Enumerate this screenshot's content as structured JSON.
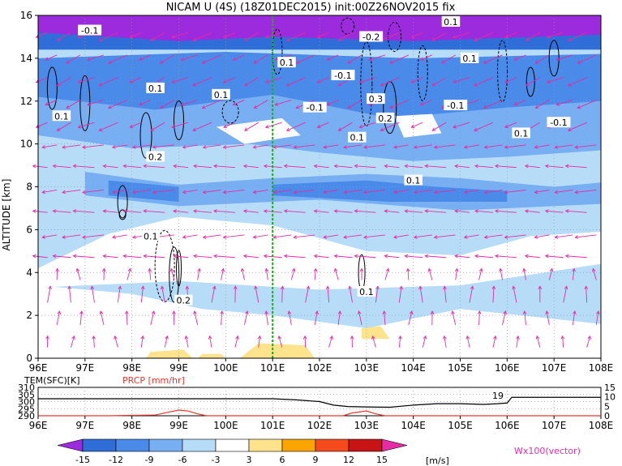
{
  "chart_data": [
    {
      "type": "heatmap",
      "title": "NICAM U (4S) (18Z01DEC2015) init:00Z26NOV2015 fix",
      "ylabel": "ALTITUDE [km]",
      "xlim": [
        96,
        108
      ],
      "ylim": [
        0,
        16
      ],
      "x_ticks": [
        "96E",
        "97E",
        "98E",
        "99E",
        "100E",
        "101E",
        "102E",
        "103E",
        "104E",
        "105E",
        "106E",
        "107E",
        "108E"
      ],
      "y_ticks": [
        "0",
        "2",
        "4",
        "6",
        "8",
        "10",
        "12",
        "14",
        "16"
      ],
      "grid": true,
      "marker_line_x": 101,
      "colorbar": {
        "levels": [
          "-15",
          "-12",
          "-9",
          "-6",
          "-3",
          "3",
          "6",
          "9",
          "12",
          "15"
        ],
        "colors": [
          "#9b2bdc",
          "#2f6ed9",
          "#4a8ae8",
          "#78aef2",
          "#b6dcf7",
          "#ffffff",
          "#fde38c",
          "#fca400",
          "#f44a1c",
          "#c81414",
          "#e62ba4"
        ],
        "unit": "[m/s]"
      },
      "vector_label": "Wx100(vector)",
      "contour_labels": [
        "-0.1",
        "-0.2",
        "0.1",
        "0.1",
        "0.1",
        "0.1",
        "0.1",
        "0.2",
        "0.3",
        "0.2",
        "0.1",
        "0.1",
        "0.1",
        "-0.1",
        "-0.1",
        "-0.1",
        "-0.1",
        "0.1",
        "0.2",
        "0.1",
        "0.1"
      ]
    },
    {
      "type": "line",
      "left_label": "TEM(SFC)[K]",
      "right_label": "PRCP [mm/hr]",
      "left_ticks": [
        "310",
        "305",
        "300",
        "295",
        "290"
      ],
      "right_ticks": [
        "15",
        "10",
        "5",
        "0"
      ],
      "x_ticks": [
        "96E",
        "97E",
        "98E",
        "99E",
        "100E",
        "101E",
        "102E",
        "103E",
        "104E",
        "105E",
        "106E",
        "107E",
        "108E"
      ],
      "series": [
        {
          "name": "TEM(SFC)[K]",
          "color": "#000000",
          "x": [
            96,
            97,
            98,
            99,
            100,
            101,
            101.5,
            102,
            102.3,
            102.6,
            103,
            103.5,
            104,
            104.5,
            105,
            105.5,
            105.8,
            106,
            106.1,
            107,
            108
          ],
          "y": [
            302,
            302,
            302,
            302,
            302,
            302,
            301.2,
            300,
            297.5,
            296.5,
            296.2,
            296,
            297.5,
            298.5,
            298.5,
            298,
            298.5,
            299,
            303,
            303,
            303
          ]
        },
        {
          "name": "PRCP [mm/hr]",
          "color": "#e8372c",
          "x": [
            96,
            97.5,
            98,
            98.5,
            98.8,
            99,
            99.2,
            99.4,
            99.6,
            100,
            102.5,
            102.7,
            103,
            103.2,
            103.4,
            104,
            106,
            108
          ],
          "y": [
            0,
            0,
            0.2,
            0.4,
            2,
            3,
            2.5,
            1,
            0,
            0,
            0,
            1.5,
            2.5,
            1,
            0,
            0,
            0,
            0
          ]
        }
      ],
      "annotation": "19"
    }
  ]
}
